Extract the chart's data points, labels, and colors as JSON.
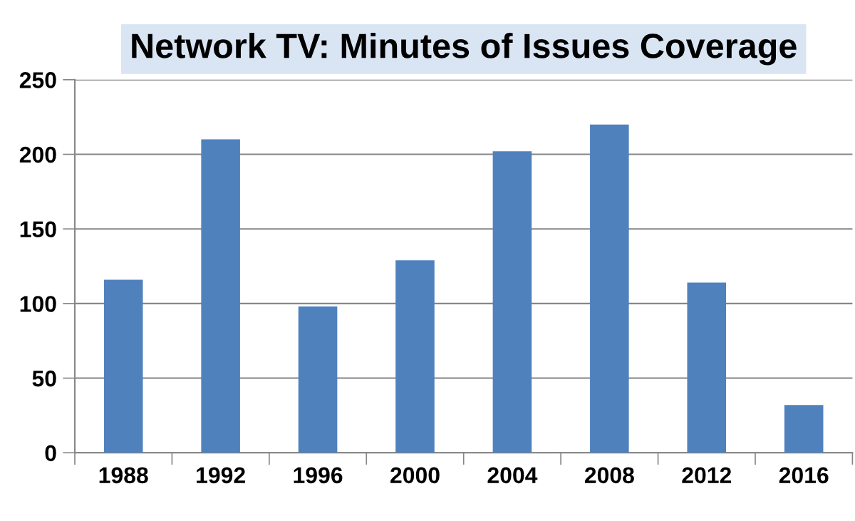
{
  "chart_data": {
    "type": "bar",
    "title": "Network TV: Minutes of Issues Coverage",
    "categories": [
      "1988",
      "1992",
      "1996",
      "2000",
      "2004",
      "2008",
      "2012",
      "2016"
    ],
    "values": [
      116,
      210,
      98,
      129,
      202,
      220,
      114,
      32
    ],
    "color": "#4f81bd",
    "ylim": [
      0,
      250
    ],
    "yticks": [
      0,
      50,
      100,
      150,
      200,
      250
    ],
    "grid": "y"
  }
}
